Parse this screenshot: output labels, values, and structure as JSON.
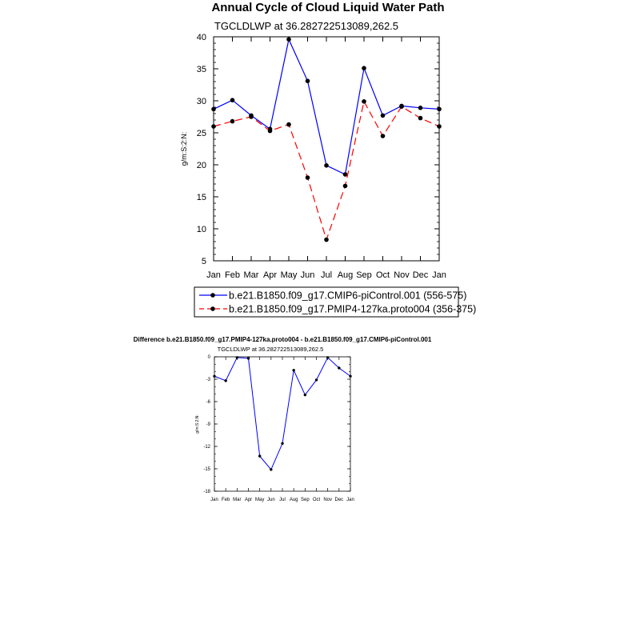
{
  "chart_data": [
    {
      "type": "line",
      "title": "Annual Cycle of Cloud Liquid Water Path",
      "subtitle": "TGCLDLWP at 36.282722513089,262.5",
      "ylabel": "g/m:S:2:N:",
      "ylim": [
        5,
        40
      ],
      "yticks": [
        5,
        10,
        15,
        20,
        25,
        30,
        35,
        40
      ],
      "categories": [
        "Jan",
        "Feb",
        "Mar",
        "Apr",
        "May",
        "Jun",
        "Jul",
        "Aug",
        "Sep",
        "Oct",
        "Nov",
        "Dec",
        "Jan"
      ],
      "legend_position": "bottom",
      "series": [
        {
          "name": "b.e21.B1850.f09_g17.CMIP6-piControl.001 (556-575)",
          "color": "#0000ff",
          "dash": "solid",
          "values": [
            28.7,
            30.1,
            27.7,
            25.6,
            39.6,
            33.1,
            19.9,
            18.5,
            35.1,
            27.7,
            29.2,
            28.9,
            28.7
          ]
        },
        {
          "name": "b.e21.B1850.f09_g17.PMIP4-127ka.proto004 (356-375)",
          "color": "#ff0000",
          "dash": "dashed",
          "values": [
            26.0,
            26.8,
            27.5,
            25.3,
            26.3,
            18.0,
            8.3,
            16.7,
            29.9,
            24.5,
            29.1,
            27.3,
            26.0
          ]
        }
      ]
    },
    {
      "type": "line",
      "title": "Difference b.e21.B1850.f09_g17.PMIP4-127ka.proto004 - b.e21.B1850.f09_g17.CMIP6-piControl.001",
      "subtitle": "TGCLDLWP at 36.282722513089,262.5",
      "ylabel": "g/m:S:2:N:",
      "ylim": [
        -18,
        0
      ],
      "yticks": [
        -18,
        -15,
        -12,
        -9,
        -6,
        -3,
        0
      ],
      "categories": [
        "Jan",
        "Feb",
        "Mar",
        "Apr",
        "May",
        "Jun",
        "Jul",
        "Aug",
        "Sep",
        "Oct",
        "Nov",
        "Dec",
        "Jan"
      ],
      "series": [
        {
          "color": "#0000ff",
          "values": [
            -2.6,
            -3.2,
            -0.1,
            -0.2,
            -13.3,
            -15.1,
            -11.6,
            -1.8,
            -5.1,
            -3.1,
            -0.1,
            -1.5,
            -2.6
          ]
        }
      ]
    }
  ]
}
